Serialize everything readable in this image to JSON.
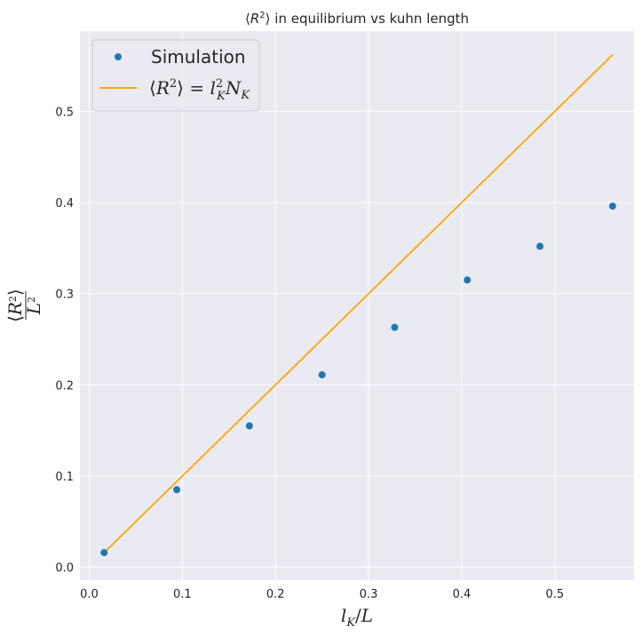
{
  "chart_data": {
    "type": "scatter",
    "title": "⟨R²⟩ in equilibrium vs kuhn length",
    "xlabel": "l_K/L",
    "ylabel": "⟨R²⟩ / L²",
    "xlim": [
      -0.01,
      0.585
    ],
    "ylim": [
      -0.014,
      0.588
    ],
    "xticks": [
      "0.0",
      "0.1",
      "0.2",
      "0.3",
      "0.4",
      "0.5"
    ],
    "yticks": [
      "0.0",
      "0.1",
      "0.2",
      "0.3",
      "0.4",
      "0.5"
    ],
    "grid": true,
    "legend_position": "top-left",
    "series": [
      {
        "name": "Simulation",
        "kind": "scatter",
        "color": "#1f77b4",
        "x": [
          0.016,
          0.094,
          0.172,
          0.25,
          0.328,
          0.406,
          0.484,
          0.562
        ],
        "y": [
          0.016,
          0.085,
          0.155,
          0.211,
          0.263,
          0.315,
          0.352,
          0.396
        ]
      },
      {
        "name": "⟨R²⟩ = l_K² N_K",
        "kind": "line",
        "color": "#ffa500",
        "x": [
          0.016,
          0.562
        ],
        "y": [
          0.016,
          0.562
        ]
      }
    ]
  },
  "colors": {
    "plot_background": "#eaeaf2",
    "grid": "#ffffff",
    "text": "#262626"
  }
}
